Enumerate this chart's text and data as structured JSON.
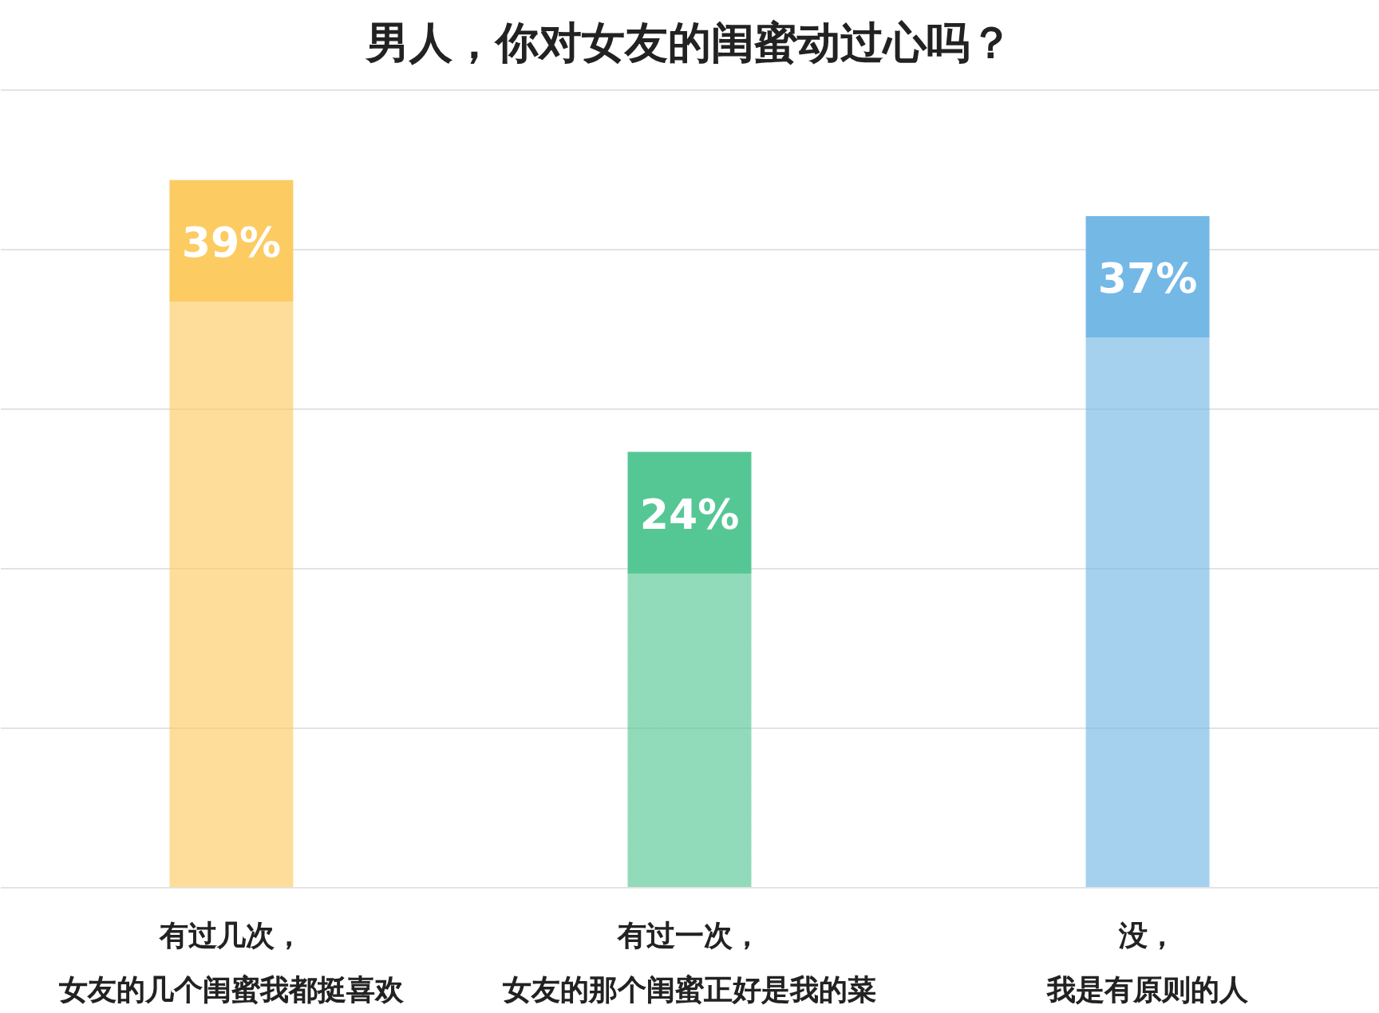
{
  "chart_data": {
    "type": "bar",
    "title": "男人，你对女友的闺蜜动过心吗？",
    "categories": [
      "有过几次，女友的几个闺蜜我都挺喜欢",
      "有过一次，女友的那个闺蜜正好是我的菜",
      "没，我是有原则的人"
    ],
    "values": [
      39,
      24,
      37
    ],
    "colors": [
      "#fccb62",
      "#55c795",
      "#74b8e6"
    ],
    "data_labels": true,
    "value_labels": [
      "39%",
      "24%",
      "37%"
    ],
    "ylim": [
      0,
      44
    ],
    "yticks": [
      {
        "value": 0,
        "label": null
      },
      {
        "value": 8.8,
        "label": null
      },
      {
        "value": 17.6,
        "label": null
      },
      {
        "value": 26.4,
        "label": null
      },
      {
        "value": 35.2,
        "label": null
      },
      {
        "value": 44,
        "label": null
      }
    ],
    "grid": "y",
    "tick_labels": "x"
  }
}
